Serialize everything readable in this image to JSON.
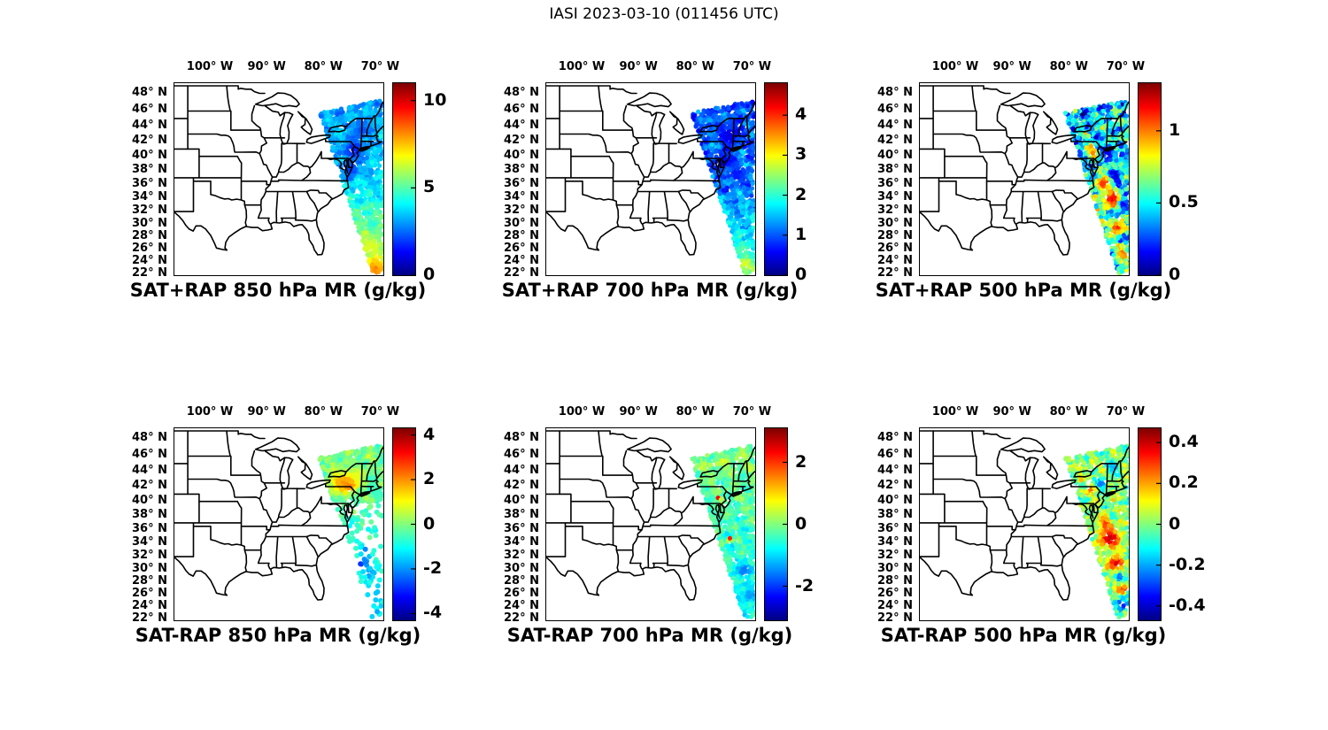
{
  "figure": {
    "title": "IASI 2023-03-10 (011456 UTC)"
  },
  "axes": {
    "projection": "mercator",
    "lon_range_deg_w": [
      106.4,
      69.6
    ],
    "lat_range_deg_n": [
      21.8,
      49.3
    ],
    "lon_tick_values_w": [
      100,
      90,
      80,
      70
    ],
    "lon_tick_labels": [
      "100° W",
      "90° W",
      "80° W",
      "70° W"
    ],
    "lat_tick_values_n": [
      48,
      46,
      44,
      42,
      40,
      38,
      36,
      34,
      32,
      30,
      28,
      26,
      24,
      22
    ],
    "lat_tick_labels": [
      "48° N",
      "46° N",
      "44° N",
      "42° N",
      "40° N",
      "38° N",
      "36° N",
      "34° N",
      "32° N",
      "30° N",
      "28° N",
      "26° N",
      "24° N",
      "22° N"
    ]
  },
  "chart_data": {
    "type": "scatter",
    "subtype": "map-scatter-grid",
    "rows": 2,
    "cols": 3,
    "colormap": "jet",
    "units": "g/kg",
    "swath_polygon_frac": [
      [
        0.695,
        0.155
      ],
      [
        0.995,
        0.088
      ],
      [
        0.995,
        0.975
      ],
      [
        0.952,
        1.0
      ]
    ],
    "panels": [
      {
        "id": "sat-plus-rap-850",
        "title": "SAT+RAP 850 hPa MR (g/kg)",
        "level_hPa": 850,
        "quantity": "SAT+RAP mixing ratio",
        "colorbar": {
          "vmin": 0,
          "vmax": 11,
          "tick_values": [
            0,
            5,
            10
          ],
          "tick_labels": [
            "0",
            "5",
            "10"
          ]
        },
        "swath": {
          "coverage": "full",
          "seed": 11,
          "dot_r": 2.6,
          "base": [
            3.1,
            3.6,
            7.0
          ],
          "noise": 0.5,
          "mottle": 0.6,
          "blobs": [
            [
              74.8,
              40.8,
              0.09,
              1.6
            ],
            [
              75.3,
              38.2,
              0.07,
              1.9
            ],
            [
              73.5,
              43.5,
              0.08,
              2.2
            ],
            [
              72.0,
              26.5,
              0.08,
              6.5
            ],
            [
              71.0,
              23.0,
              0.06,
              8.3
            ]
          ]
        },
        "description": "850 hPa mixing ratio swath along US East Coast; ~2-4 g/kg (blue/cyan) in the north increasing to ~6-8 g/kg (yellow/orange) at the southern tip near 22N."
      },
      {
        "id": "sat-plus-rap-700",
        "title": "SAT+RAP 700 hPa MR (g/kg)",
        "level_hPa": 700,
        "quantity": "SAT+RAP mixing ratio",
        "colorbar": {
          "vmin": 0,
          "vmax": 4.8,
          "tick_values": [
            0,
            1,
            2,
            3,
            4
          ],
          "tick_labels": [
            "0",
            "1",
            "2",
            "3",
            "4"
          ]
        },
        "swath": {
          "coverage": "full",
          "seed": 22,
          "dot_r": 2.6,
          "base": [
            1.0,
            1.15,
            2.1
          ],
          "noise": 0.3,
          "mottle": 0.35,
          "blobs": [
            [
              74.0,
              42.8,
              0.09,
              0.45
            ],
            [
              75.2,
              39.3,
              0.08,
              0.5
            ],
            [
              72.8,
              37.5,
              0.07,
              0.7
            ],
            [
              71.8,
              26.0,
              0.07,
              2.2
            ],
            [
              71.2,
              23.5,
              0.06,
              2.9
            ]
          ]
        },
        "description": "700 hPa mixing ratio; mostly 0.5-1.5 g/kg (dark blue/blue), increasing to ~2-3 g/kg (cyan/green) toward the southern end of the swath."
      },
      {
        "id": "sat-plus-rap-500",
        "title": "SAT+RAP 500 hPa MR (g/kg)",
        "level_hPa": 500,
        "quantity": "SAT+RAP mixing ratio",
        "colorbar": {
          "vmin": 0,
          "vmax": 1.33,
          "tick_values": [
            0,
            0.5,
            1
          ],
          "tick_labels": [
            "0",
            "0.5",
            "1"
          ]
        },
        "swath": {
          "coverage": "full",
          "seed": 33,
          "dot_r": 2.6,
          "base": [
            0.42,
            0.5,
            0.58
          ],
          "noise": 0.22,
          "mottle": 0.28,
          "blobs": [
            [
              76.0,
              40.5,
              0.05,
              1.0
            ],
            [
              74.3,
              36.2,
              0.07,
              1.1
            ],
            [
              72.6,
              33.8,
              0.08,
              1.2
            ],
            [
              71.6,
              29.5,
              0.06,
              1.15
            ],
            [
              70.6,
              25.5,
              0.05,
              1.05
            ],
            [
              73.2,
              40.5,
              0.06,
              0.12
            ],
            [
              71.9,
              37.2,
              0.05,
              0.1
            ],
            [
              70.6,
              33.0,
              0.05,
              0.15
            ]
          ]
        },
        "description": "500 hPa mixing ratio; mottled field of 0.1-0.7 g/kg (blue/cyan/green) with patches near 1-1.3 g/kg (orange/red) between ~25N and 37N."
      },
      {
        "id": "sat-minus-rap-850",
        "title": "SAT-RAP 850 hPa MR (g/kg)",
        "level_hPa": 850,
        "quantity": "SAT-RAP mixing ratio difference",
        "colorbar": {
          "vmin": -4.3,
          "vmax": 4.3,
          "tick_values": [
            -4,
            -2,
            0,
            2,
            4
          ],
          "tick_labels": [
            "-4",
            "-2",
            "0",
            "2",
            "4"
          ]
        },
        "swath": {
          "coverage": "sparse-south",
          "seed": 44,
          "dot_r": 3.0,
          "base": [
            0.2,
            -0.5,
            -1.5
          ],
          "noise": 0.45,
          "mottle": 0.4,
          "blobs": [
            [
              77.0,
              42.6,
              0.1,
              1.8
            ],
            [
              75.5,
              42.3,
              0.07,
              2.2
            ],
            [
              74.0,
              43.5,
              0.07,
              0.9
            ],
            [
              72.6,
              32.8,
              0.05,
              -2.3
            ],
            [
              73.5,
              31.0,
              0.05,
              -2.8
            ],
            [
              72.0,
              29.5,
              0.05,
              -2.0
            ]
          ]
        },
        "description": "850 hPa SAT-RAP difference; dense coverage only over the Northeast with +1 to +2.5 g/kg (orange) over New York/Pennsylvania, and sparse offshore points of -1 to -3 g/kg (cyan/blue) to the south."
      },
      {
        "id": "sat-minus-rap-700",
        "title": "SAT-RAP 700 hPa MR (g/kg)",
        "level_hPa": 700,
        "quantity": "SAT-RAP mixing ratio difference",
        "colorbar": {
          "vmin": -3.1,
          "vmax": 3.1,
          "tick_values": [
            -2,
            0,
            2
          ],
          "tick_labels": [
            "-2",
            "0",
            "2"
          ]
        },
        "swath": {
          "coverage": "full",
          "seed": 55,
          "dot_r": 2.6,
          "base": [
            0.2,
            -0.35,
            -0.8
          ],
          "noise": 0.3,
          "mottle": 0.35,
          "blobs": [
            [
              76.15,
              40.4,
              0.02,
              2.6
            ],
            [
              74.0,
              34.7,
              0.02,
              2.3
            ],
            [
              71.5,
              30.0,
              0.07,
              -1.6
            ],
            [
              70.8,
              26.0,
              0.06,
              -1.4
            ]
          ]
        },
        "description": "700 hPa SAT-RAP difference; mostly near 0 to -1 g/kg (green/cyan), slightly more negative (blue) in the south, with a few isolated +2 g/kg red specks."
      },
      {
        "id": "sat-minus-rap-500",
        "title": "SAT-RAP 500 hPa MR (g/kg)",
        "level_hPa": 500,
        "quantity": "SAT-RAP mixing ratio difference",
        "colorbar": {
          "vmin": -0.47,
          "vmax": 0.47,
          "tick_values": [
            -0.4,
            -0.2,
            0,
            0.2,
            0.4
          ],
          "tick_labels": [
            "-0.4",
            "-0.2",
            "0",
            "0.2",
            "0.4"
          ]
        },
        "swath": {
          "coverage": "full",
          "seed": 66,
          "dot_r": 2.6,
          "base": [
            0.01,
            0.02,
            -0.03
          ],
          "noise": 0.1,
          "mottle": 0.09,
          "blobs": [
            [
              76.2,
              41.5,
              0.04,
              0.28
            ],
            [
              73.8,
              37.0,
              0.05,
              0.3
            ],
            [
              72.9,
              34.8,
              0.09,
              0.42
            ],
            [
              71.9,
              31.0,
              0.07,
              0.38
            ],
            [
              70.8,
              27.0,
              0.05,
              0.32
            ],
            [
              74.5,
              42.5,
              0.05,
              -0.25
            ],
            [
              72.3,
              44.5,
              0.06,
              -0.2
            ],
            [
              71.3,
              28.8,
              0.04,
              -0.3
            ],
            [
              70.8,
              24.5,
              0.05,
              -0.38
            ]
          ]
        },
        "description": "500 hPa SAT-RAP difference; mottled near-zero field (green/cyan) with +0.3 to +0.45 g/kg red patches between ~28N and 37N and scattered -0.2 to -0.4 g/kg blue patches."
      }
    ]
  }
}
